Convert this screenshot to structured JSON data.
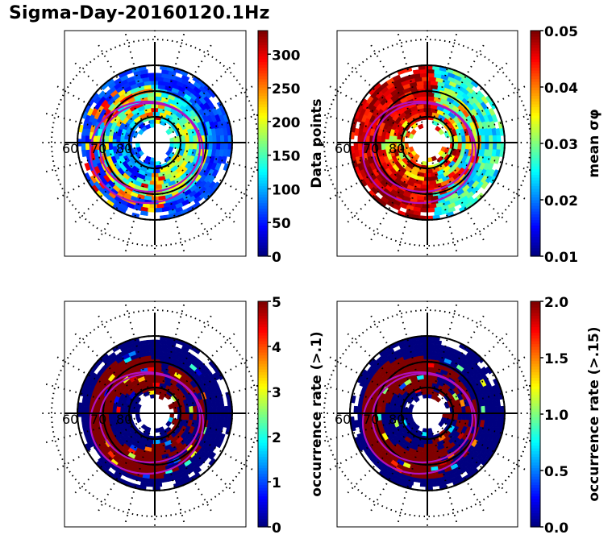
{
  "title": "Sigma-Day-20160120.1Hz",
  "chart_data": [
    {
      "type": "heatmap",
      "projection": "polar",
      "panel": "top-left",
      "colormap": "jet",
      "colorbar_label": "Data points",
      "colorbar_range": [
        0,
        335
      ],
      "colorbar_ticks": [
        "0",
        "50",
        "100",
        "150",
        "200",
        "250",
        "300"
      ],
      "colorbar_tick_values": [
        0,
        50,
        100,
        150,
        200,
        250,
        300
      ],
      "radial_tick_labels": [
        "60",
        "70",
        "80"
      ],
      "pattern": "mostly_low_with_midrange_ring",
      "dominant_values": {
        "outer_ring": 60,
        "mid_ring": 150,
        "hot_sector": 260,
        "inner_ring": 80
      }
    },
    {
      "type": "heatmap",
      "projection": "polar",
      "panel": "top-right",
      "colormap": "jet",
      "colorbar_label": "mean σφ",
      "colorbar_range": [
        0.01,
        0.05
      ],
      "colorbar_ticks": [
        "0.01",
        "0.02",
        "0.03",
        "0.04",
        "0.05"
      ],
      "colorbar_tick_values": [
        0.01,
        0.02,
        0.03,
        0.04,
        0.05
      ],
      "radial_tick_labels": [
        "60",
        "70",
        "80"
      ],
      "pattern": "high_on_dayside_left_low_on_right",
      "dominant_values": {
        "outer_ring": 0.025,
        "mid_ring": 0.05,
        "hot_sector": 0.05,
        "inner_ring": 0.04
      }
    },
    {
      "type": "heatmap",
      "projection": "polar",
      "panel": "bottom-left",
      "colormap": "jet",
      "colorbar_label": "occurrence rate (>.1)",
      "colorbar_range": [
        0,
        5
      ],
      "colorbar_ticks": [
        "0",
        "1",
        "2",
        "3",
        "4",
        "5"
      ],
      "colorbar_tick_values": [
        0,
        1,
        2,
        3,
        4,
        5
      ],
      "radial_tick_labels": [
        "60",
        "70",
        "80"
      ],
      "pattern": "saturated_mid_ring_low_elsewhere",
      "dominant_values": {
        "outer_ring": 0,
        "mid_ring": 5,
        "hot_sector": 5,
        "inner_ring": 0.3
      }
    },
    {
      "type": "heatmap",
      "projection": "polar",
      "panel": "bottom-right",
      "colormap": "jet",
      "colorbar_label": "occurrence rate (>.15)",
      "colorbar_range": [
        0.0,
        2.0
      ],
      "colorbar_ticks": [
        "0.0",
        "0.5",
        "1.0",
        "1.5",
        "2.0"
      ],
      "colorbar_tick_values": [
        0.0,
        0.5,
        1.0,
        1.5,
        2.0
      ],
      "radial_tick_labels": [
        "60",
        "70",
        "80"
      ],
      "pattern": "saturated_mid_ring_low_elsewhere",
      "dominant_values": {
        "outer_ring": 0,
        "mid_ring": 2.0,
        "hot_sector": 2.0,
        "inner_ring": 0.1
      }
    }
  ]
}
